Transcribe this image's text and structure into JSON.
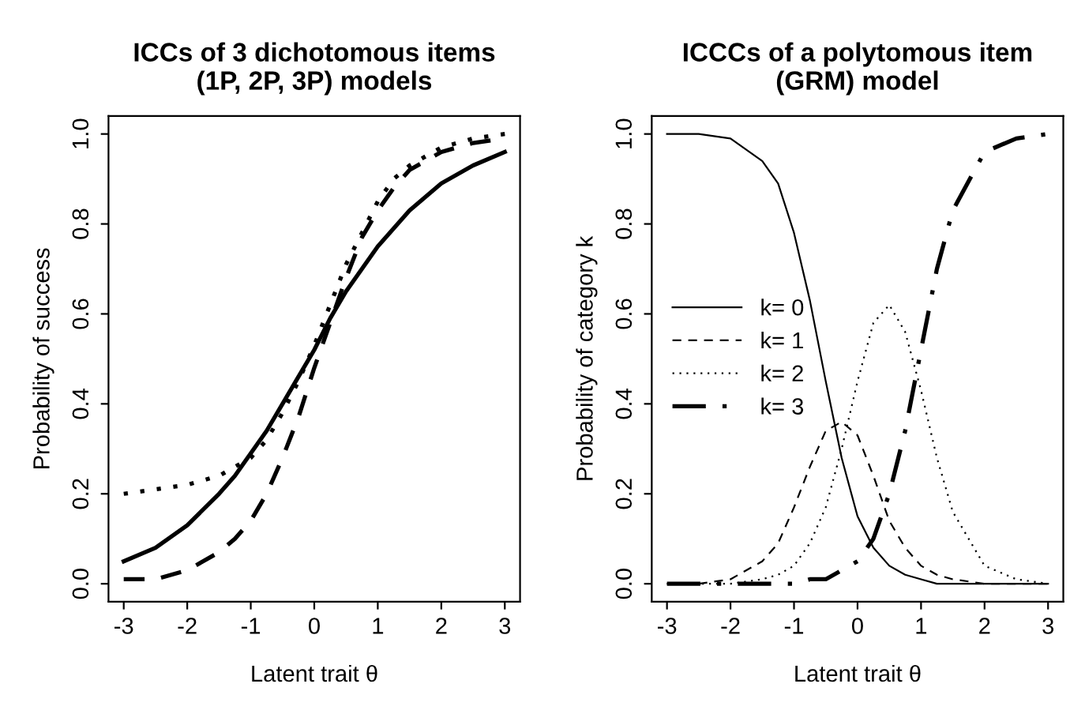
{
  "chart_data": [
    {
      "type": "line",
      "title": "ICCs of 3 dichotomous items\n(1P, 2P, 3P) models",
      "xlabel": "Latent trait θ",
      "ylabel": "Probability of success",
      "x": [
        -3,
        -2.5,
        -2,
        -1.5,
        -1.25,
        -1,
        -0.75,
        -0.5,
        -0.25,
        0,
        0.25,
        0.5,
        0.75,
        1,
        1.25,
        1.5,
        2,
        2.5,
        3
      ],
      "series": [
        {
          "color": "#000000",
          "line_style": "solid",
          "values": [
            0.05,
            0.08,
            0.13,
            0.2,
            0.24,
            0.29,
            0.34,
            0.4,
            0.46,
            0.52,
            0.59,
            0.65,
            0.7,
            0.75,
            0.79,
            0.83,
            0.89,
            0.93,
            0.96
          ]
        },
        {
          "color": "#000000",
          "line_style": "dashed",
          "values": [
            0.01,
            0.01,
            0.03,
            0.07,
            0.1,
            0.14,
            0.2,
            0.28,
            0.37,
            0.48,
            0.58,
            0.68,
            0.77,
            0.83,
            0.88,
            0.92,
            0.96,
            0.98,
            0.99
          ]
        },
        {
          "color": "#000000",
          "line_style": "dotted",
          "values": [
            0.2,
            0.21,
            0.22,
            0.24,
            0.26,
            0.28,
            0.32,
            0.38,
            0.45,
            0.53,
            0.62,
            0.71,
            0.78,
            0.85,
            0.9,
            0.93,
            0.97,
            0.99,
            1.0
          ]
        }
      ],
      "xlim": [
        -3.24,
        3.24
      ],
      "ylim": [
        -0.04,
        1.04
      ],
      "xticks": [
        -3,
        -2,
        -1,
        0,
        1,
        2,
        3
      ],
      "yticks": [
        {
          "value": 0,
          "label": "0.0"
        },
        {
          "value": 0.2,
          "label": "0.2"
        },
        {
          "value": 0.4,
          "label": "0.4"
        },
        {
          "value": 0.6,
          "label": "0.6"
        },
        {
          "value": 0.8,
          "label": "0.8"
        },
        {
          "value": 1,
          "label": "1.0"
        }
      ]
    },
    {
      "type": "line",
      "title": "ICCCs of a polytomous item\n(GRM) model",
      "xlabel": "Latent trait θ",
      "ylabel": "Probability of category k",
      "legend": "left",
      "x": [
        -3,
        -2.5,
        -2,
        -1.5,
        -1.25,
        -1,
        -0.75,
        -0.5,
        -0.25,
        0,
        0.25,
        0.5,
        0.75,
        1,
        1.25,
        1.5,
        2,
        2.5,
        3
      ],
      "series": [
        {
          "name": "k= 0",
          "color": "#000000",
          "line_style": "solid",
          "values": [
            1.0,
            1.0,
            0.99,
            0.94,
            0.89,
            0.78,
            0.63,
            0.45,
            0.28,
            0.15,
            0.08,
            0.04,
            0.02,
            0.01,
            0.0,
            0.0,
            0.0,
            0.0,
            0.0
          ]
        },
        {
          "name": "k= 1",
          "color": "#000000",
          "line_style": "dashed",
          "values": [
            0.0,
            0.0,
            0.01,
            0.05,
            0.09,
            0.17,
            0.26,
            0.34,
            0.36,
            0.33,
            0.24,
            0.14,
            0.08,
            0.04,
            0.02,
            0.01,
            0.0,
            0.0,
            0.0
          ]
        },
        {
          "name": "k= 2",
          "color": "#000000",
          "line_style": "dotted",
          "values": [
            0.0,
            0.0,
            0.0,
            0.01,
            0.02,
            0.04,
            0.09,
            0.17,
            0.3,
            0.45,
            0.58,
            0.62,
            0.56,
            0.43,
            0.28,
            0.16,
            0.04,
            0.01,
            0.0
          ]
        },
        {
          "name": "k= 3",
          "color": "#000000",
          "line_style": "dashdot",
          "values": [
            0.0,
            0.0,
            0.0,
            0.0,
            0.0,
            0.0,
            0.01,
            0.01,
            0.03,
            0.05,
            0.1,
            0.2,
            0.34,
            0.52,
            0.7,
            0.83,
            0.96,
            0.99,
            1.0
          ]
        }
      ],
      "xlim": [
        -3.24,
        3.24
      ],
      "ylim": [
        -0.04,
        1.04
      ],
      "xticks": [
        -3,
        -2,
        -1,
        0,
        1,
        2,
        3
      ],
      "yticks": [
        {
          "value": 0,
          "label": "0.0"
        },
        {
          "value": 0.2,
          "label": "0.2"
        },
        {
          "value": 0.4,
          "label": "0.4"
        },
        {
          "value": 0.6,
          "label": "0.6"
        },
        {
          "value": 0.8,
          "label": "0.8"
        },
        {
          "value": 1,
          "label": "1.0"
        }
      ]
    }
  ]
}
